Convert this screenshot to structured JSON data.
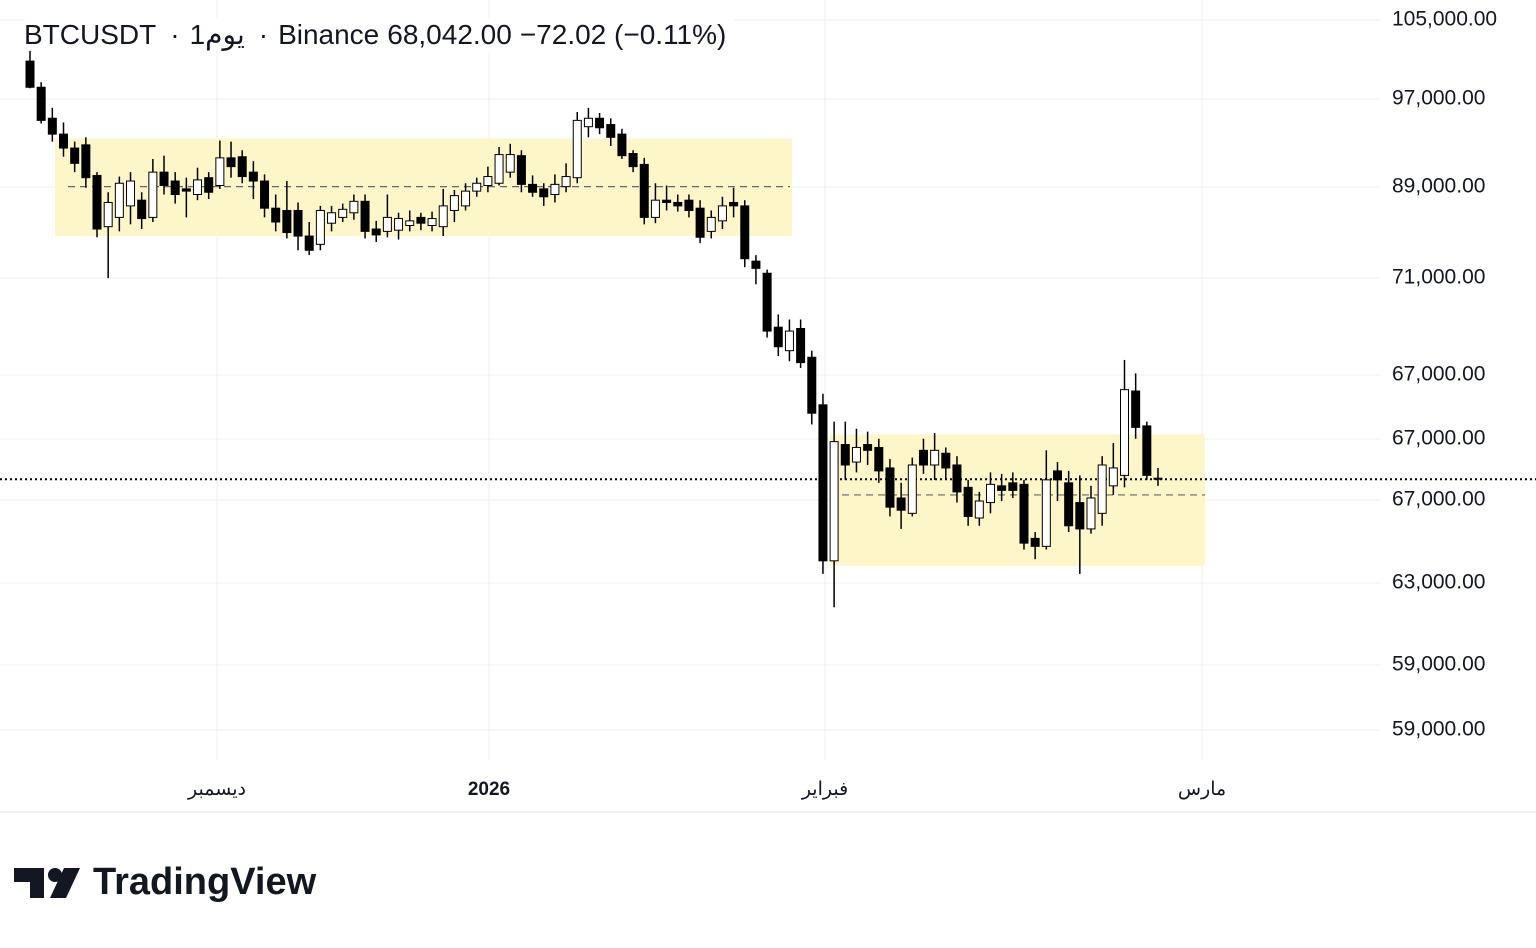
{
  "chart_data": {
    "type": "candlestick",
    "symbol": "BTCUSDT",
    "separator": "·",
    "interval": "1يوم",
    "exchange": "Binance",
    "last_price": {
      "value": 68042,
      "label": "68,042.00"
    },
    "change": "−72.02 (−0.11%)",
    "log_scale": true,
    "ylim": [
      51640,
      108950
    ],
    "price_axis_labels": [
      "105,000.00",
      "97,000.00",
      "89,000.00",
      "71,000.00",
      "67,000.00",
      "67,000.00",
      "67,000.00",
      "63,000.00",
      "59,000.00",
      "59,000.00"
    ],
    "time_axis_labels": [
      "ديسمبر",
      "2026",
      "فبراير",
      "مارس"
    ],
    "up_color": "#ffffff",
    "down_color": "#000000",
    "zone_color": "#fdf6c8",
    "zones": [
      {
        "top": 95100,
        "bottom": 86400,
        "mid": 90700
      },
      {
        "top": 71100,
        "bottom": 62500,
        "mid": 67000
      }
    ],
    "open": [
      102600,
      100000,
      97000,
      95500,
      94200,
      94500,
      91700,
      87200,
      88000,
      89000,
      89500,
      88000,
      92000,
      91200,
      90500,
      90000,
      91500,
      90800,
      93300,
      93400,
      92000,
      91200,
      88800,
      88600,
      88600,
      86400,
      85700,
      87500,
      88000,
      88400,
      89400,
      87000,
      86800,
      86900,
      87300,
      88000,
      87300,
      87200,
      88600,
      89000,
      90300,
      90800,
      91000,
      92000,
      93500,
      90900,
      90500,
      90000,
      90700,
      91500,
      96200,
      97000,
      96400,
      95500,
      93700,
      92700,
      88000,
      89500,
      89300,
      89500,
      88800,
      86800,
      87700,
      89300,
      89000,
      84300,
      83300,
      79000,
      77200,
      78900,
      76700,
      73200,
      62800,
      70400,
      69200,
      70400,
      70200,
      68800,
      66800,
      65800,
      70000,
      69000,
      69800,
      69000,
      67500,
      65500,
      66500,
      67600,
      67800,
      67700,
      64200,
      63700,
      68600,
      67800,
      66500,
      64800,
      65800,
      67600,
      68300,
      74200,
      71700,
      68110
    ],
    "high": [
      103700,
      100500,
      98000,
      96600,
      94800,
      95200,
      92000,
      90200,
      91600,
      92000,
      90200,
      93200,
      93500,
      92000,
      91500,
      92400,
      92000,
      94900,
      94800,
      94000,
      93000,
      91800,
      90000,
      91200,
      89300,
      87600,
      89000,
      89000,
      89200,
      90000,
      90000,
      87700,
      90000,
      88400,
      88600,
      88400,
      88500,
      90500,
      90400,
      91000,
      91500,
      92500,
      94300,
      94600,
      94000,
      91700,
      91000,
      91800,
      92800,
      97600,
      98000,
      97500,
      97000,
      96000,
      94000,
      93300,
      91000,
      90800,
      90000,
      90000,
      89500,
      88600,
      89800,
      90600,
      89500,
      84800,
      83600,
      80000,
      79600,
      79600,
      77200,
      74000,
      72000,
      72000,
      71500,
      71300,
      70800,
      69400,
      67800,
      69500,
      70800,
      71200,
      70200,
      69600,
      68000,
      67200,
      68500,
      68400,
      68500,
      68000,
      64600,
      70000,
      69200,
      68600,
      68300,
      67600,
      69600,
      70500,
      76500,
      75500,
      72000,
      68800
    ],
    "low": [
      99900,
      96500,
      94800,
      93400,
      92000,
      90600,
      86300,
      82900,
      86800,
      87400,
      87000,
      87600,
      90000,
      89200,
      88000,
      89500,
      89600,
      90500,
      91500,
      91000,
      89600,
      88000,
      86800,
      86200,
      85200,
      84800,
      85200,
      86800,
      87600,
      87800,
      86200,
      85900,
      86300,
      86100,
      86800,
      86900,
      86800,
      86400,
      87600,
      88600,
      89800,
      90200,
      90800,
      91500,
      90200,
      89800,
      89000,
      89300,
      90200,
      91000,
      95200,
      95500,
      94400,
      93200,
      92000,
      87400,
      87500,
      88600,
      88500,
      88000,
      85800,
      86200,
      87000,
      88000,
      83800,
      82400,
      78200,
      76800,
      76400,
      75900,
      71800,
      62000,
      60000,
      68000,
      68500,
      69000,
      67800,
      65600,
      64800,
      65600,
      68400,
      68000,
      68000,
      66500,
      65000,
      65000,
      65800,
      66600,
      66800,
      63500,
      62900,
      63500,
      66600,
      64600,
      62000,
      64500,
      65000,
      67000,
      67500,
      70800,
      68000,
      67600
    ],
    "close": [
      100000,
      96800,
      95500,
      94200,
      92800,
      91500,
      87000,
      89300,
      91000,
      91200,
      87900,
      92000,
      90800,
      90000,
      90300,
      91300,
      90200,
      93300,
      92500,
      91600,
      91200,
      88800,
      87600,
      86700,
      86400,
      85200,
      88600,
      88400,
      88700,
      89400,
      86800,
      86500,
      88000,
      87900,
      87700,
      87500,
      87900,
      89000,
      89900,
      90300,
      91000,
      91600,
      93600,
      93600,
      90900,
      90200,
      89800,
      90900,
      91600,
      96800,
      97000,
      96100,
      95200,
      93500,
      92500,
      88000,
      89500,
      89300,
      89000,
      88600,
      86300,
      88000,
      89000,
      89000,
      84500,
      83700,
      78700,
      77500,
      78700,
      76300,
      72600,
      62800,
      70600,
      69000,
      70200,
      70000,
      68600,
      66200,
      66000,
      69000,
      69000,
      70000,
      68800,
      67200,
      65600,
      66600,
      67700,
      67300,
      67300,
      63900,
      63700,
      68000,
      68000,
      65000,
      64800,
      66800,
      69000,
      68800,
      74300,
      71600,
      68300,
      68042
    ]
  },
  "footer": {
    "brand": "TradingView"
  }
}
